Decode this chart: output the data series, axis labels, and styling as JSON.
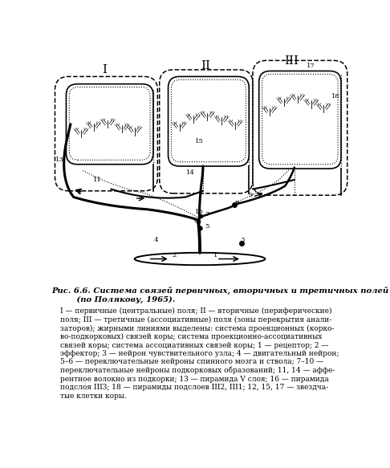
{
  "figure_width": 4.86,
  "figure_height": 5.83,
  "dpi": 100,
  "bg_color": "#ffffff",
  "caption_title": "Рис. 6.6. Система связей первичных, вторичных и третичных полей коры\n         (по Полякову, 1965).",
  "caption_body": "I — первичные (центральные) поля; II — вторичные (периферические)\nполя; III — третичные (ассоциативные) поля (зоны перекрытия анали-\nзаторов); жирными линиями выделены: система проекционных (корко-\nво-подкорковых) связей коры; система проекционно-ассоциативных\nсвязей коры; система ассоциативных связей коры; 1 — рецептор; 2 —\nэффектор; 3 — нейрон чувствительного узла; 4 — двигательный нейрон;\n5–6 — переключательные нейроны спинного мозга и ствола; 7–10 —\nпереключательные нейроны подкорковых образований; 11, 14 — аффе-\nрентное волокно из подкорки; 13 — пирамида V слоя; 16 — пирамида\nподслоя III3; 18 — пирамиды подслоев III2, III1; 12, 15, 17 — звездча-\nтые клетки коры.",
  "label_I": "I",
  "label_II": "II",
  "label_III": "III",
  "lc": "#000000"
}
